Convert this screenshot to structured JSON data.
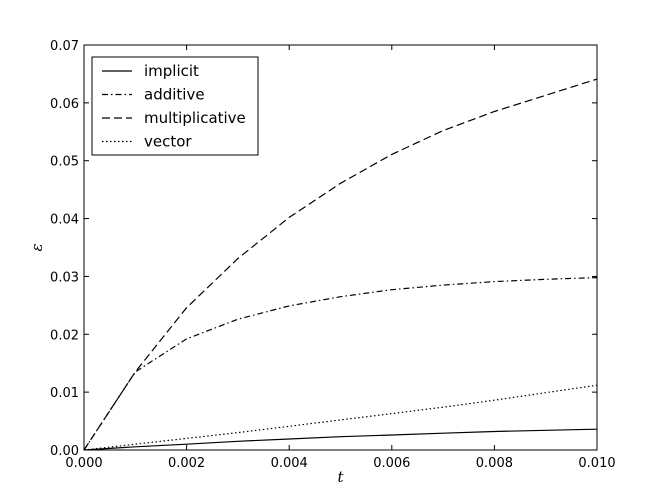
{
  "chart_data": {
    "type": "line",
    "xlabel": "t",
    "ylabel": "ε",
    "xlim": [
      0.0,
      0.01
    ],
    "ylim": [
      0.0,
      0.07
    ],
    "x_ticks": [
      "0.000",
      "0.002",
      "0.004",
      "0.006",
      "0.008",
      "0.010"
    ],
    "y_ticks": [
      "0.00",
      "0.01",
      "0.02",
      "0.03",
      "0.04",
      "0.05",
      "0.06",
      "0.07"
    ],
    "grid": false,
    "legend_position": "top-left",
    "series": [
      {
        "name": "implicit",
        "style": "solid",
        "x": [
          0.0,
          0.001,
          0.002,
          0.003,
          0.004,
          0.005,
          0.006,
          0.007,
          0.008,
          0.009,
          0.01
        ],
        "y": [
          0.0,
          0.00055,
          0.001,
          0.0015,
          0.0019,
          0.0023,
          0.0026,
          0.0029,
          0.0032,
          0.0034,
          0.0036
        ]
      },
      {
        "name": "additive",
        "style": "dashdot",
        "x": [
          0.0,
          0.001,
          0.002,
          0.003,
          0.004,
          0.005,
          0.006,
          0.007,
          0.008,
          0.009,
          0.01
        ],
        "y": [
          0.0,
          0.0135,
          0.0192,
          0.0226,
          0.0249,
          0.0265,
          0.0277,
          0.0285,
          0.0291,
          0.0295,
          0.0298
        ]
      },
      {
        "name": "multiplicative",
        "style": "dashed",
        "x": [
          0.0,
          0.001,
          0.002,
          0.003,
          0.004,
          0.005,
          0.006,
          0.007,
          0.008,
          0.009,
          0.01
        ],
        "y": [
          0.0,
          0.0135,
          0.0246,
          0.0331,
          0.0402,
          0.0461,
          0.0511,
          0.0552,
          0.0585,
          0.0613,
          0.0641
        ]
      },
      {
        "name": "vector",
        "style": "dotted",
        "x": [
          0.0,
          0.001,
          0.002,
          0.003,
          0.004,
          0.005,
          0.006,
          0.007,
          0.008,
          0.009,
          0.01
        ],
        "y": [
          0.0,
          0.001,
          0.002,
          0.003,
          0.0041,
          0.0052,
          0.0063,
          0.0074,
          0.0086,
          0.0099,
          0.0112
        ]
      }
    ]
  }
}
